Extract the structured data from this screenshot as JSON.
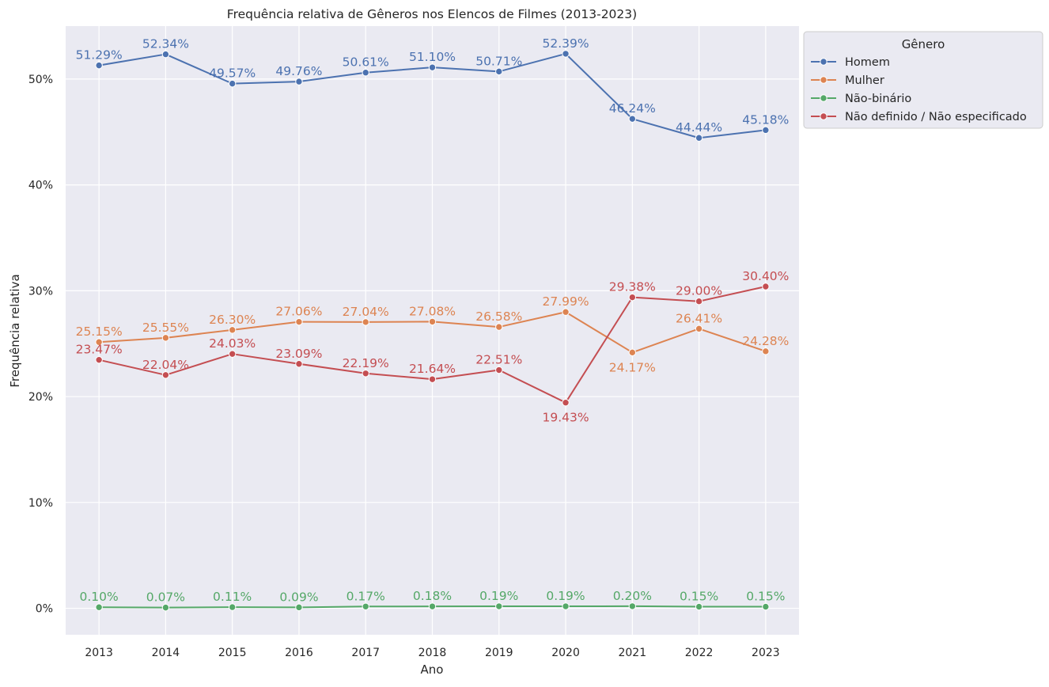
{
  "chart_data": {
    "type": "line",
    "title": "Frequência relativa de Gêneros nos Elencos de Filmes (2013-2023)",
    "xlabel": "Ano",
    "ylabel": "Frequência relativa",
    "x": [
      2013,
      2014,
      2015,
      2016,
      2017,
      2018,
      2019,
      2020,
      2021,
      2022,
      2023
    ],
    "ylim": [
      -0.025,
      0.55
    ],
    "yticks": [
      0,
      0.1,
      0.2,
      0.3,
      0.4,
      0.5
    ],
    "ytick_labels": [
      "0%",
      "10%",
      "20%",
      "30%",
      "40%",
      "50%"
    ],
    "grid": true,
    "legend_title": "Gênero",
    "legend_position": "outside-top-right",
    "series": [
      {
        "name": "Homem",
        "color": "#4c72b0",
        "values": [
          0.5129,
          0.5234,
          0.4957,
          0.4976,
          0.5061,
          0.511,
          0.5071,
          0.5239,
          0.4624,
          0.4444,
          0.4518
        ],
        "labels": [
          "51.29%",
          "52.34%",
          "49.57%",
          "49.76%",
          "50.61%",
          "51.10%",
          "50.71%",
          "52.39%",
          "46.24%",
          "44.44%",
          "45.18%"
        ]
      },
      {
        "name": "Mulher",
        "color": "#dd8452",
        "values": [
          0.2515,
          0.2555,
          0.263,
          0.2706,
          0.2704,
          0.2708,
          0.2658,
          0.2799,
          0.2417,
          0.2641,
          0.2428
        ],
        "labels": [
          "25.15%",
          "25.55%",
          "26.30%",
          "27.06%",
          "27.04%",
          "27.08%",
          "26.58%",
          "27.99%",
          "24.17%",
          "26.41%",
          "24.28%"
        ]
      },
      {
        "name": "Não-binário",
        "color": "#55a868",
        "values": [
          0.001,
          0.0007,
          0.0011,
          0.0009,
          0.0017,
          0.0018,
          0.0019,
          0.0019,
          0.002,
          0.0015,
          0.0015
        ],
        "labels": [
          "0.10%",
          "0.07%",
          "0.11%",
          "0.09%",
          "0.17%",
          "0.18%",
          "0.19%",
          "0.19%",
          "0.20%",
          "0.15%",
          "0.15%"
        ]
      },
      {
        "name": "Não definido / Não especificado",
        "color": "#c44e52",
        "values": [
          0.2347,
          0.2204,
          0.2403,
          0.2309,
          0.2219,
          0.2164,
          0.2251,
          0.1943,
          0.2938,
          0.29,
          0.304
        ],
        "labels": [
          "23.47%",
          "22.04%",
          "24.03%",
          "23.09%",
          "22.19%",
          "21.64%",
          "22.51%",
          "19.43%",
          "29.38%",
          "29.00%",
          "30.40%"
        ]
      }
    ]
  }
}
